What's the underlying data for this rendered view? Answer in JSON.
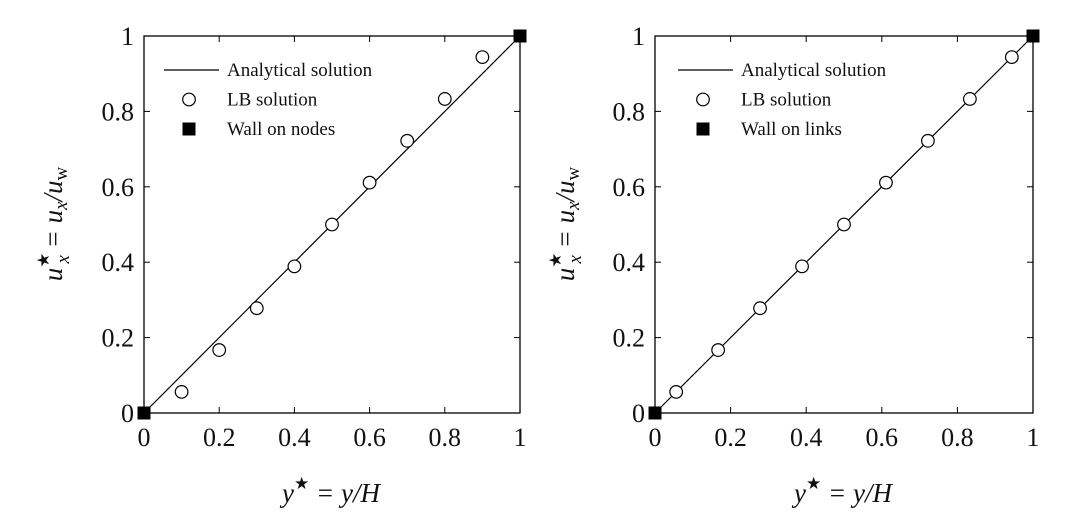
{
  "chart_data": [
    {
      "type": "scatter",
      "xlabel": "y⋆ = y/H",
      "ylabel": "u⋆x = ux/uw",
      "xlim": [
        0,
        1
      ],
      "ylim": [
        0,
        1
      ],
      "x_ticks": [
        "0",
        "0.2",
        "0.4",
        "0.6",
        "0.8",
        "1"
      ],
      "y_ticks": [
        "0",
        "0.2",
        "0.4",
        "0.6",
        "0.8",
        "1"
      ],
      "grid": false,
      "legend_position": "top-left",
      "series": [
        {
          "name": "Analytical solution",
          "kind": "line",
          "x": [
            0,
            1
          ],
          "y": [
            0,
            1
          ],
          "color": "#000000"
        },
        {
          "name": "LB solution",
          "kind": "open-circle",
          "x": [
            0.1,
            0.2,
            0.3,
            0.4,
            0.5,
            0.6,
            0.7,
            0.8,
            0.9
          ],
          "y": [
            0.056,
            0.167,
            0.278,
            0.389,
            0.5,
            0.611,
            0.722,
            0.833,
            0.944
          ],
          "color": "#000000"
        },
        {
          "name": "Wall on nodes",
          "kind": "filled-square",
          "x": [
            0,
            1
          ],
          "y": [
            0,
            1
          ],
          "color": "#000000"
        }
      ]
    },
    {
      "type": "scatter",
      "xlabel": "y⋆ = y/H",
      "ylabel": "u⋆x = ux/uw",
      "xlim": [
        0,
        1
      ],
      "ylim": [
        0,
        1
      ],
      "x_ticks": [
        "0",
        "0.2",
        "0.4",
        "0.6",
        "0.8",
        "1"
      ],
      "y_ticks": [
        "0",
        "0.2",
        "0.4",
        "0.6",
        "0.8",
        "1"
      ],
      "grid": false,
      "legend_position": "top-left",
      "series": [
        {
          "name": "Analytical solution",
          "kind": "line",
          "x": [
            0,
            1
          ],
          "y": [
            0,
            1
          ],
          "color": "#000000"
        },
        {
          "name": "LB solution",
          "kind": "open-circle",
          "x": [
            0.056,
            0.167,
            0.278,
            0.389,
            0.5,
            0.611,
            0.722,
            0.833,
            0.944
          ],
          "y": [
            0.056,
            0.167,
            0.278,
            0.389,
            0.5,
            0.611,
            0.722,
            0.833,
            0.944
          ],
          "color": "#000000"
        },
        {
          "name": "Wall on links",
          "kind": "filled-square",
          "x": [
            0,
            1
          ],
          "y": [
            0,
            1
          ],
          "color": "#000000"
        }
      ]
    }
  ]
}
